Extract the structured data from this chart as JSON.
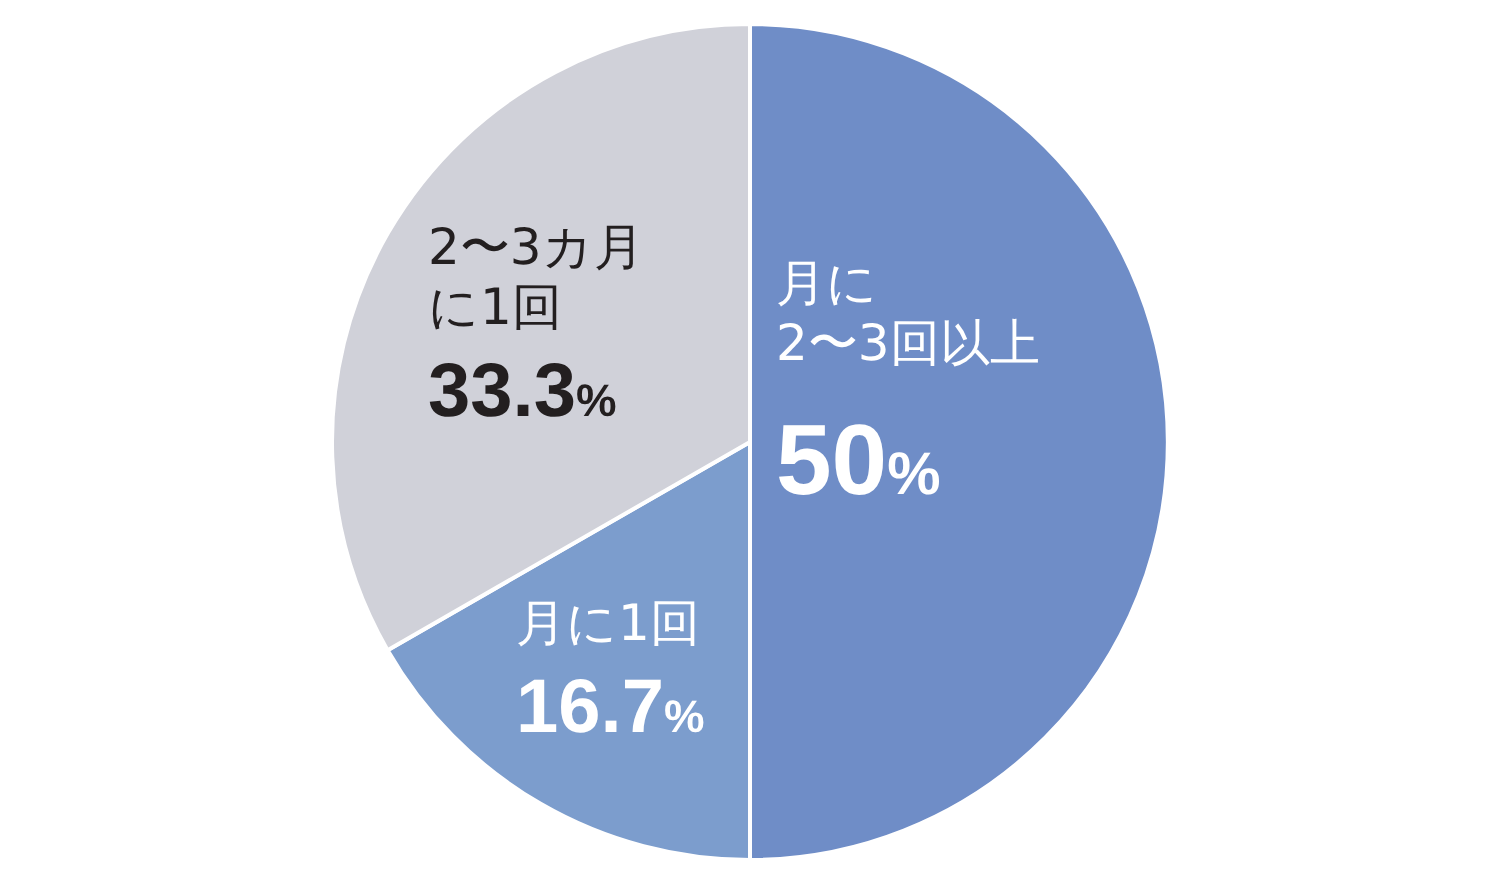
{
  "chart_data": {
    "type": "pie",
    "categories": [
      "月に2〜3回以上",
      "月に1回",
      "2〜3カ月に1回"
    ],
    "values": [
      50,
      16.7,
      33.3
    ],
    "colors": [
      "#6f8dc7",
      "#7c9dcd",
      "#d0d1d9"
    ],
    "value_labels": [
      "50%",
      "16.7%",
      "33.3%"
    ]
  }
}
